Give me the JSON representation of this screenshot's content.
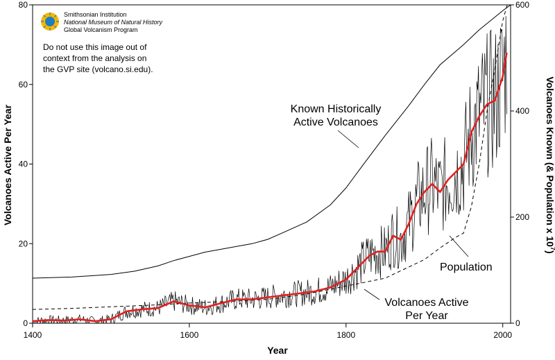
{
  "chart_data": {
    "type": "line",
    "xlabel": "Year",
    "ylabel_left": "Volcanoes Active Per Year",
    "ylabel_right_main": "Volcanoes Known (& Population x 10",
    "ylabel_right_exp": "7",
    "ylabel_right_close": ")",
    "xlim": [
      1400,
      2010
    ],
    "ylim_left": [
      0,
      80
    ],
    "ylim_right": [
      0,
      600
    ],
    "x_ticks": [
      1400,
      1600,
      1800,
      2000
    ],
    "y_left_ticks": [
      0,
      20,
      40,
      60,
      80
    ],
    "y_right_ticks": [
      0,
      200,
      400,
      600
    ],
    "annotations": {
      "known_line1": "Known Historically",
      "known_line2": "Active Volcanoes",
      "population": "Population",
      "active_line1": "Volcanoes Active",
      "active_line2": "Per Year"
    },
    "credit": {
      "institution": "Smithsonian Institution",
      "museum": "National Museum of Natural History",
      "program": "Global Volcanism Program",
      "note_line1": "Do not use this image out of",
      "note_line2": "context from the analysis on",
      "note_line3": "the GVP site (volcano.si.edu)."
    },
    "series": [
      {
        "id": "known",
        "axis": "right",
        "x": [
          1400,
          1450,
          1500,
          1530,
          1560,
          1580,
          1600,
          1620,
          1650,
          1680,
          1700,
          1720,
          1750,
          1780,
          1800,
          1820,
          1850,
          1880,
          1900,
          1920,
          1950,
          1970,
          1990,
          2000,
          2010
        ],
        "y": [
          85,
          87,
          92,
          98,
          108,
          118,
          126,
          134,
          142,
          150,
          158,
          171,
          191,
          223,
          255,
          295,
          354,
          410,
          450,
          487,
          525,
          553,
          577,
          589,
          600
        ]
      },
      {
        "id": "population",
        "axis": "right",
        "x": [
          1400,
          1450,
          1500,
          1550,
          1600,
          1650,
          1700,
          1750,
          1800,
          1850,
          1900,
          1920,
          1940,
          1950,
          1960,
          1970,
          1980,
          1990,
          2000,
          2008
        ],
        "y": [
          26,
          28,
          31,
          34,
          38,
          41,
          45,
          55,
          70,
          85,
          120,
          142,
          162,
          170,
          220,
          300,
          400,
          480,
          570,
          612
        ]
      },
      {
        "id": "active",
        "axis": "left",
        "x": [
          1400,
          1420,
          1440,
          1460,
          1480,
          1500,
          1510,
          1520,
          1540,
          1560,
          1580,
          1600,
          1620,
          1640,
          1660,
          1680,
          1700,
          1720,
          1740,
          1760,
          1780,
          1790,
          1800,
          1810,
          1820,
          1830,
          1840,
          1850,
          1860,
          1870,
          1880,
          1890,
          1900,
          1910,
          1920,
          1930,
          1940,
          1950,
          1960,
          1970,
          1980,
          1990,
          2000,
          2005
        ],
        "y": [
          0.5,
          0.8,
          0.7,
          1,
          0.5,
          1,
          2,
          3,
          3.5,
          3.8,
          5.5,
          4.5,
          4,
          5,
          6,
          6,
          6.5,
          7,
          7.5,
          8,
          9,
          10,
          11,
          13,
          15,
          17,
          18,
          18,
          22,
          21,
          25,
          30,
          33,
          35,
          33,
          36,
          38,
          40,
          48,
          52,
          55,
          56,
          62,
          68
        ]
      }
    ]
  }
}
